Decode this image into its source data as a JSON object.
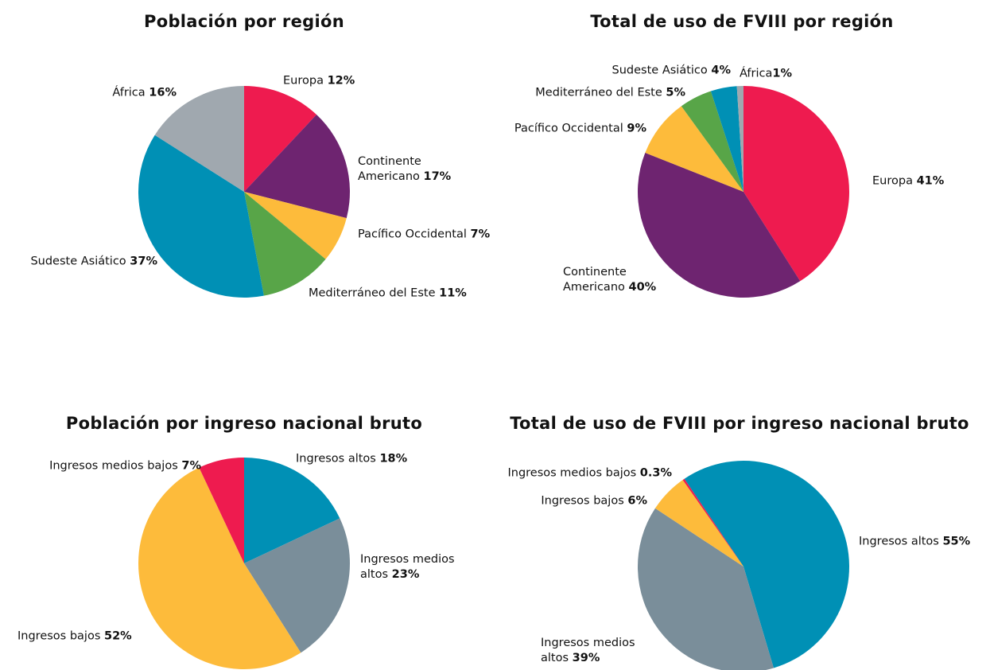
{
  "chart_data": [
    {
      "type": "pie",
      "title": "Población por región",
      "categories": [
        "Europa",
        "Continente Americano",
        "Pacífico Occidental",
        "Mediterráneo del Este",
        "Sudeste Asiático",
        "África"
      ],
      "values": [
        12,
        17,
        7,
        11,
        37,
        16
      ],
      "value_labels": [
        "12%",
        "17%",
        "7%",
        "11%",
        "37%",
        "16%"
      ],
      "colors": [
        "#ee1b4f",
        "#6e2470",
        "#fdbb3b",
        "#58a548",
        "#0090b5",
        "#a0a8af"
      ]
    },
    {
      "type": "pie",
      "title": "Total de uso de FVIII por región",
      "categories": [
        "Europa",
        "Continente Americano",
        "Pacífico Occidental",
        "Mediterráneo del Este",
        "Sudeste Asiático",
        "África"
      ],
      "values": [
        41,
        40,
        9,
        5,
        4,
        1
      ],
      "value_labels": [
        "41%",
        "40%",
        "9%",
        "5%",
        "4%",
        "1%"
      ],
      "colors": [
        "#ee1b4f",
        "#6e2470",
        "#fdbb3b",
        "#58a548",
        "#0090b5",
        "#a0a8af"
      ]
    },
    {
      "type": "pie",
      "title": "Población por ingreso nacional bruto",
      "categories": [
        "Ingresos altos",
        "Ingresos medios altos",
        "Ingresos bajos",
        "Ingresos medios bajos"
      ],
      "values": [
        18,
        23,
        52,
        7
      ],
      "value_labels": [
        "18%",
        "23%",
        "52%",
        "7%"
      ],
      "colors": [
        "#0090b5",
        "#7a8e9a",
        "#fdbb3b",
        "#ee1b4f"
      ]
    },
    {
      "type": "pie",
      "title": "Total de uso de FVIII por ingreso nacional bruto",
      "categories": [
        "Ingresos altos",
        "Ingresos medios altos",
        "Ingresos bajos",
        "Ingresos medios bajos"
      ],
      "values": [
        55,
        39,
        6,
        0.3
      ],
      "value_labels": [
        "55%",
        "39%",
        "6%",
        "0.3%"
      ],
      "colors": [
        "#0090b5",
        "#7a8e9a",
        "#fdbb3b",
        "#ee1b4f"
      ]
    }
  ]
}
